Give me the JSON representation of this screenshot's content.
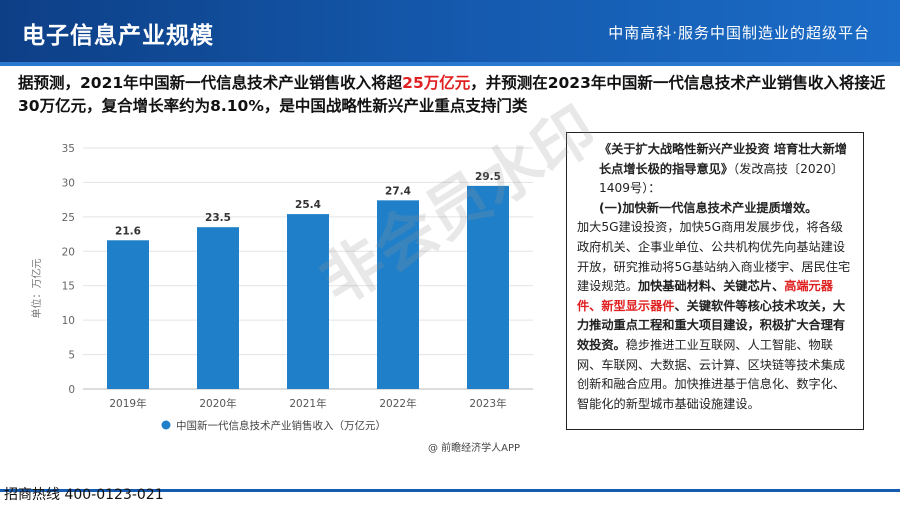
{
  "header": {
    "title": "电子信息产业规模",
    "slogan": "中南高科·服务中国制造业的超级平台"
  },
  "headline": {
    "part1": "据预测，2021年中国新一代信息技术产业销售收入将超",
    "highlight": "25万亿元",
    "part2": "，并预测在2023年中国新一代信息技术产业销售收入将接近30万亿元，复合增长率约为8.10%，是中国战略性新兴产业重点支持门类"
  },
  "chart_data": {
    "type": "bar",
    "categories": [
      "2019年",
      "2020年",
      "2021年",
      "2022年",
      "2023年"
    ],
    "series": [
      {
        "name": "中国新一代信息技术产业销售收入（万亿元）",
        "values": [
          21.6,
          23.5,
          25.4,
          27.4,
          29.5
        ]
      }
    ],
    "ylabel": "单位：万亿元",
    "ylim": [
      0,
      35
    ],
    "yticks": [
      0,
      5,
      10,
      15,
      20,
      25,
      30,
      35
    ],
    "grid": true,
    "legend": "bottom",
    "source": "@ 前瞻经济学人APP",
    "bar_color": "#1f7fc8"
  },
  "side_box": {
    "doc_title": "《关于扩大战略性新兴产业投资 培育壮大新增长点增长极的指导意见》",
    "doc_ref": "（发改高技〔2020〕1409号）：",
    "section": "(一)加快新一代信息技术产业提质增效。",
    "text1": "加大5G建设投资，加快5G商用发展步伐，将各级政府机关、企事业单位、公共机构优先向基站建设开放，研究推动将5G基站纳入商业楼宇、居民住宅建设规范。",
    "bold1": "加快基础材料、关键芯片、",
    "red1": "高端元器件、新型显示器件",
    "bold2": "、关键软件等核心技术攻关，大力推动重点工程和重大项目建设，积极扩大合理有效投资。",
    "text2": "稳步推进工业互联网、人工智能、物联网、车联网、大数据、云计算、区块链等技术集成创新和融合应用。加快推进基于信息化、数字化、智能化的新型城市基础设施建设。"
  },
  "watermark": "非会员水印",
  "footer": {
    "hotline": "招商热线 400-0123-021"
  }
}
